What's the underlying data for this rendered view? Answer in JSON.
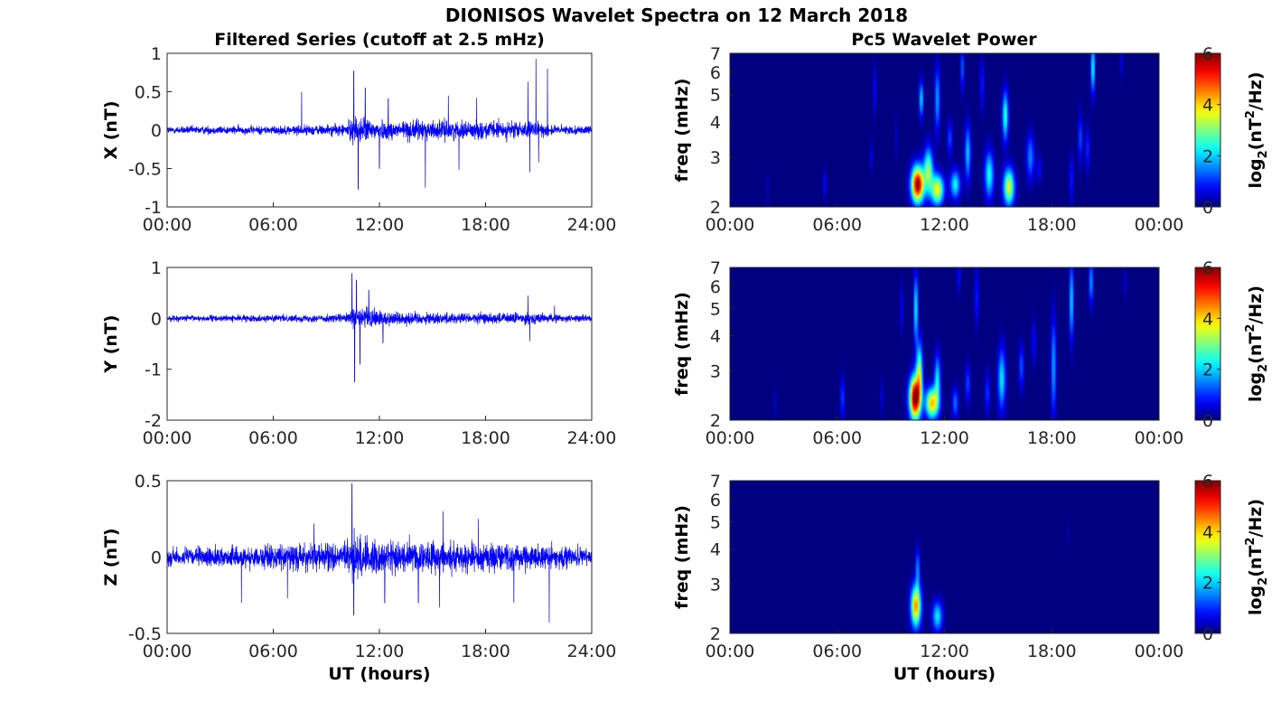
{
  "figure": {
    "title": "DIONISOS Wavelet Spectra on 12 March 2018",
    "left_column_title": "Filtered Series (cutoff at 2.5 mHz)",
    "right_column_title": "Pc5 Wavelet Power"
  },
  "colors": {
    "series": "#0000ff",
    "colormap": "jet"
  },
  "chart_data": [
    {
      "type": "line",
      "title": "Filtered Series (cutoff at 2.5 mHz)",
      "ylabel": "X (nT)",
      "xlabel": "",
      "ylim": [
        -1,
        1
      ],
      "yticks": [
        "1",
        "0.5",
        "0",
        "-0.5",
        "-1"
      ],
      "ytick_values": [
        1,
        0.5,
        0,
        -0.5,
        -1
      ],
      "xticks": [
        "00:00",
        "06:00",
        "12:00",
        "18:00",
        "24:00"
      ],
      "xlim_hours": [
        0,
        24
      ],
      "series": [
        {
          "noise_base": 0.035,
          "envelope": [
            [
              0,
              1.0
            ],
            [
              6,
              1.1
            ],
            [
              8,
              1.3
            ],
            [
              10,
              1.5
            ],
            [
              10.6,
              3.5
            ],
            [
              12,
              2.5
            ],
            [
              14,
              2.6
            ],
            [
              17,
              2.2
            ],
            [
              19,
              2.3
            ],
            [
              21,
              2.0
            ],
            [
              22,
              1.2
            ],
            [
              24,
              1.0
            ]
          ],
          "peaks": [
            [
              7.6,
              0.5
            ],
            [
              10.55,
              0.77
            ],
            [
              10.8,
              -0.77
            ],
            [
              11.2,
              0.55
            ],
            [
              12,
              -0.5
            ],
            [
              14.6,
              -0.75
            ],
            [
              16.5,
              -0.52
            ],
            [
              17.5,
              0.42
            ],
            [
              20.4,
              0.63
            ],
            [
              20.5,
              -0.55
            ],
            [
              20.85,
              0.93
            ],
            [
              21.0,
              -0.42
            ],
            [
              21.5,
              0.8
            ],
            [
              12.5,
              0.41
            ],
            [
              15.9,
              0.45
            ]
          ]
        }
      ]
    },
    {
      "type": "line",
      "title": "",
      "ylabel": "Y (nT)",
      "xlabel": "",
      "ylim": [
        -2,
        1
      ],
      "yticks": [
        "1",
        "0",
        "-1",
        "-2"
      ],
      "ytick_values": [
        1,
        0,
        -1,
        -2
      ],
      "xticks": [
        "00:00",
        "06:00",
        "12:00",
        "18:00",
        "24:00"
      ],
      "xlim_hours": [
        0,
        24
      ],
      "series": [
        {
          "noise_base": 0.04,
          "envelope": [
            [
              0,
              1.0
            ],
            [
              6,
              1.1
            ],
            [
              9,
              1.3
            ],
            [
              10.3,
              1.6
            ],
            [
              10.6,
              4.5
            ],
            [
              11.5,
              3.5
            ],
            [
              12.5,
              2.5
            ],
            [
              15,
              2.0
            ],
            [
              18,
              1.8
            ],
            [
              20.5,
              2.0
            ],
            [
              22,
              1.3
            ],
            [
              24,
              1.0
            ]
          ],
          "peaks": [
            [
              10.45,
              0.88
            ],
            [
              10.6,
              -1.25
            ],
            [
              10.7,
              0.75
            ],
            [
              10.9,
              -0.9
            ],
            [
              11.4,
              0.55
            ],
            [
              12.2,
              -0.48
            ],
            [
              20.4,
              0.45
            ],
            [
              20.5,
              -0.45
            ],
            [
              21.9,
              0.25
            ]
          ]
        }
      ]
    },
    {
      "type": "line",
      "title": "",
      "ylabel": "Z (nT)",
      "xlabel": "UT (hours)",
      "ylim": [
        -0.5,
        0.5
      ],
      "yticks": [
        "0.5",
        "0",
        "-0.5"
      ],
      "ytick_values": [
        0.5,
        0,
        -0.5
      ],
      "xticks": [
        "00:00",
        "06:00",
        "12:00",
        "18:00",
        "24:00"
      ],
      "xlim_hours": [
        0,
        24
      ],
      "series": [
        {
          "noise_base": 0.038,
          "envelope": [
            [
              0,
              1.0
            ],
            [
              4,
              1.2
            ],
            [
              7,
              1.5
            ],
            [
              10,
              1.7
            ],
            [
              10.5,
              2.6
            ],
            [
              12,
              2.0
            ],
            [
              16,
              1.8
            ],
            [
              19,
              1.6
            ],
            [
              22,
              1.3
            ],
            [
              24,
              1.0
            ]
          ],
          "peaks": [
            [
              10.45,
              0.48
            ],
            [
              10.55,
              -0.38
            ],
            [
              8.3,
              0.22
            ],
            [
              15.6,
              0.3
            ],
            [
              15.4,
              -0.33
            ],
            [
              21.6,
              -0.43
            ],
            [
              19.6,
              -0.3
            ],
            [
              14.2,
              -0.3
            ],
            [
              12.3,
              -0.3
            ],
            [
              17.6,
              0.25
            ],
            [
              6.8,
              -0.27
            ],
            [
              4.2,
              -0.3
            ]
          ]
        }
      ]
    },
    {
      "type": "heatmap",
      "title": "Pc5 Wavelet Power",
      "ylabel": "freq (mHz)",
      "xlabel": "",
      "yticks": [
        "7",
        "6",
        "5",
        "4",
        "3",
        "2"
      ],
      "ytick_values": [
        7,
        6,
        5,
        4,
        3,
        2
      ],
      "yscale": "log",
      "ylim_mhz": [
        2,
        7
      ],
      "xticks": [
        "00:00",
        "06:00",
        "12:00",
        "18:00",
        "00:00"
      ],
      "xlim_hours": [
        0,
        24
      ],
      "colorbar": {
        "label": "log2(nT2/Hz)",
        "ticks": [
          "6",
          "4",
          "2",
          "0"
        ],
        "range": [
          0,
          6
        ]
      },
      "blobs": [
        [
          10.5,
          2.4,
          0.25,
          0.25,
          6.0
        ],
        [
          11.6,
          2.3,
          0.25,
          0.2,
          3.8
        ],
        [
          11.1,
          2.7,
          0.18,
          0.35,
          3.0
        ],
        [
          10.7,
          4.8,
          0.08,
          0.5,
          2.2
        ],
        [
          12.6,
          2.4,
          0.2,
          0.2,
          2.3
        ],
        [
          14.5,
          2.6,
          0.18,
          0.35,
          2.4
        ],
        [
          15.6,
          2.35,
          0.22,
          0.25,
          3.6
        ],
        [
          15.4,
          4.2,
          0.12,
          0.6,
          2.6
        ],
        [
          11.6,
          4.8,
          0.1,
          0.9,
          1.8
        ],
        [
          13.3,
          3.1,
          0.12,
          0.5,
          2.0
        ],
        [
          16.8,
          3.0,
          0.15,
          0.4,
          1.6
        ],
        [
          19.1,
          2.5,
          0.08,
          0.35,
          1.0
        ],
        [
          19.6,
          3.5,
          0.08,
          0.5,
          1.3
        ],
        [
          20.3,
          6.2,
          0.08,
          0.9,
          2.5
        ],
        [
          20.0,
          3.2,
          0.08,
          0.4,
          1.1
        ],
        [
          17.3,
          2.7,
          0.1,
          0.2,
          0.8
        ],
        [
          13.0,
          6.2,
          0.06,
          0.8,
          1.6
        ],
        [
          8.1,
          5.2,
          0.06,
          0.8,
          0.9
        ],
        [
          5.3,
          2.4,
          0.07,
          0.2,
          0.8
        ],
        [
          7.9,
          3.0,
          0.06,
          0.25,
          0.7
        ],
        [
          2.1,
          2.3,
          0.06,
          0.2,
          0.4
        ],
        [
          9.3,
          3.5,
          0.05,
          0.4,
          0.6
        ],
        [
          21.9,
          6.5,
          0.05,
          0.6,
          0.8
        ],
        [
          14.1,
          5.4,
          0.08,
          0.8,
          1.0
        ],
        [
          12.3,
          3.5,
          0.1,
          0.35,
          1.2
        ]
      ]
    },
    {
      "type": "heatmap",
      "title": "",
      "ylabel": "freq (mHz)",
      "xlabel": "",
      "yticks": [
        "7",
        "6",
        "5",
        "4",
        "3",
        "2"
      ],
      "ytick_values": [
        7,
        6,
        5,
        4,
        3,
        2
      ],
      "yscale": "log",
      "ylim_mhz": [
        2,
        7
      ],
      "xticks": [
        "00:00",
        "06:00",
        "12:00",
        "18:00",
        "00:00"
      ],
      "xlim_hours": [
        0,
        24
      ],
      "colorbar": {
        "label": "log2(nT2/Hz)",
        "ticks": [
          "6",
          "4",
          "2",
          "0"
        ],
        "range": [
          0,
          6
        ]
      },
      "blobs": [
        [
          10.35,
          2.4,
          0.22,
          0.3,
          6.3
        ],
        [
          11.3,
          2.3,
          0.25,
          0.2,
          4.2
        ],
        [
          10.6,
          3.0,
          0.12,
          0.5,
          3.0
        ],
        [
          10.4,
          5.0,
          0.08,
          1.0,
          2.4
        ],
        [
          11.6,
          2.8,
          0.12,
          0.4,
          2.2
        ],
        [
          12.6,
          2.3,
          0.12,
          0.2,
          1.5
        ],
        [
          13.3,
          2.7,
          0.1,
          0.3,
          1.2
        ],
        [
          15.2,
          2.8,
          0.15,
          0.5,
          2.2
        ],
        [
          18.1,
          3.1,
          0.1,
          0.9,
          1.8
        ],
        [
          19.1,
          5.3,
          0.08,
          1.2,
          2.2
        ],
        [
          20.2,
          6.2,
          0.08,
          0.8,
          1.8
        ],
        [
          16.3,
          3.1,
          0.1,
          0.4,
          1.3
        ],
        [
          6.3,
          2.4,
          0.08,
          0.3,
          1.2
        ],
        [
          2.5,
          2.3,
          0.06,
          0.2,
          0.5
        ],
        [
          9.6,
          5.0,
          0.06,
          0.7,
          0.9
        ],
        [
          8.5,
          2.4,
          0.06,
          0.25,
          0.6
        ],
        [
          13.8,
          5.5,
          0.08,
          0.9,
          1.0
        ],
        [
          12.8,
          6.5,
          0.06,
          0.6,
          1.0
        ],
        [
          17.0,
          3.8,
          0.08,
          0.5,
          0.9
        ],
        [
          14.4,
          2.5,
          0.1,
          0.3,
          1.1
        ],
        [
          22.1,
          6.2,
          0.06,
          0.6,
          0.6
        ]
      ]
    },
    {
      "type": "heatmap",
      "title": "",
      "ylabel": "freq (mHz)",
      "xlabel": "UT (hours)",
      "yticks": [
        "7",
        "6",
        "5",
        "4",
        "3",
        "2"
      ],
      "ytick_values": [
        7,
        6,
        5,
        4,
        3,
        2
      ],
      "yscale": "log",
      "ylim_mhz": [
        2,
        7
      ],
      "xticks": [
        "00:00",
        "06:00",
        "12:00",
        "18:00",
        "00:00"
      ],
      "xlim_hours": [
        0,
        24
      ],
      "colorbar": {
        "label": "log2(nT2/Hz)",
        "ticks": [
          "6",
          "4",
          "2",
          "0"
        ],
        "range": [
          0,
          6
        ]
      },
      "blobs": [
        [
          10.4,
          2.5,
          0.2,
          0.3,
          4.4
        ],
        [
          11.6,
          2.3,
          0.2,
          0.2,
          2.2
        ],
        [
          10.5,
          3.4,
          0.08,
          0.4,
          1.6
        ],
        [
          18.9,
          4.6,
          0.04,
          0.4,
          0.4
        ]
      ]
    }
  ]
}
